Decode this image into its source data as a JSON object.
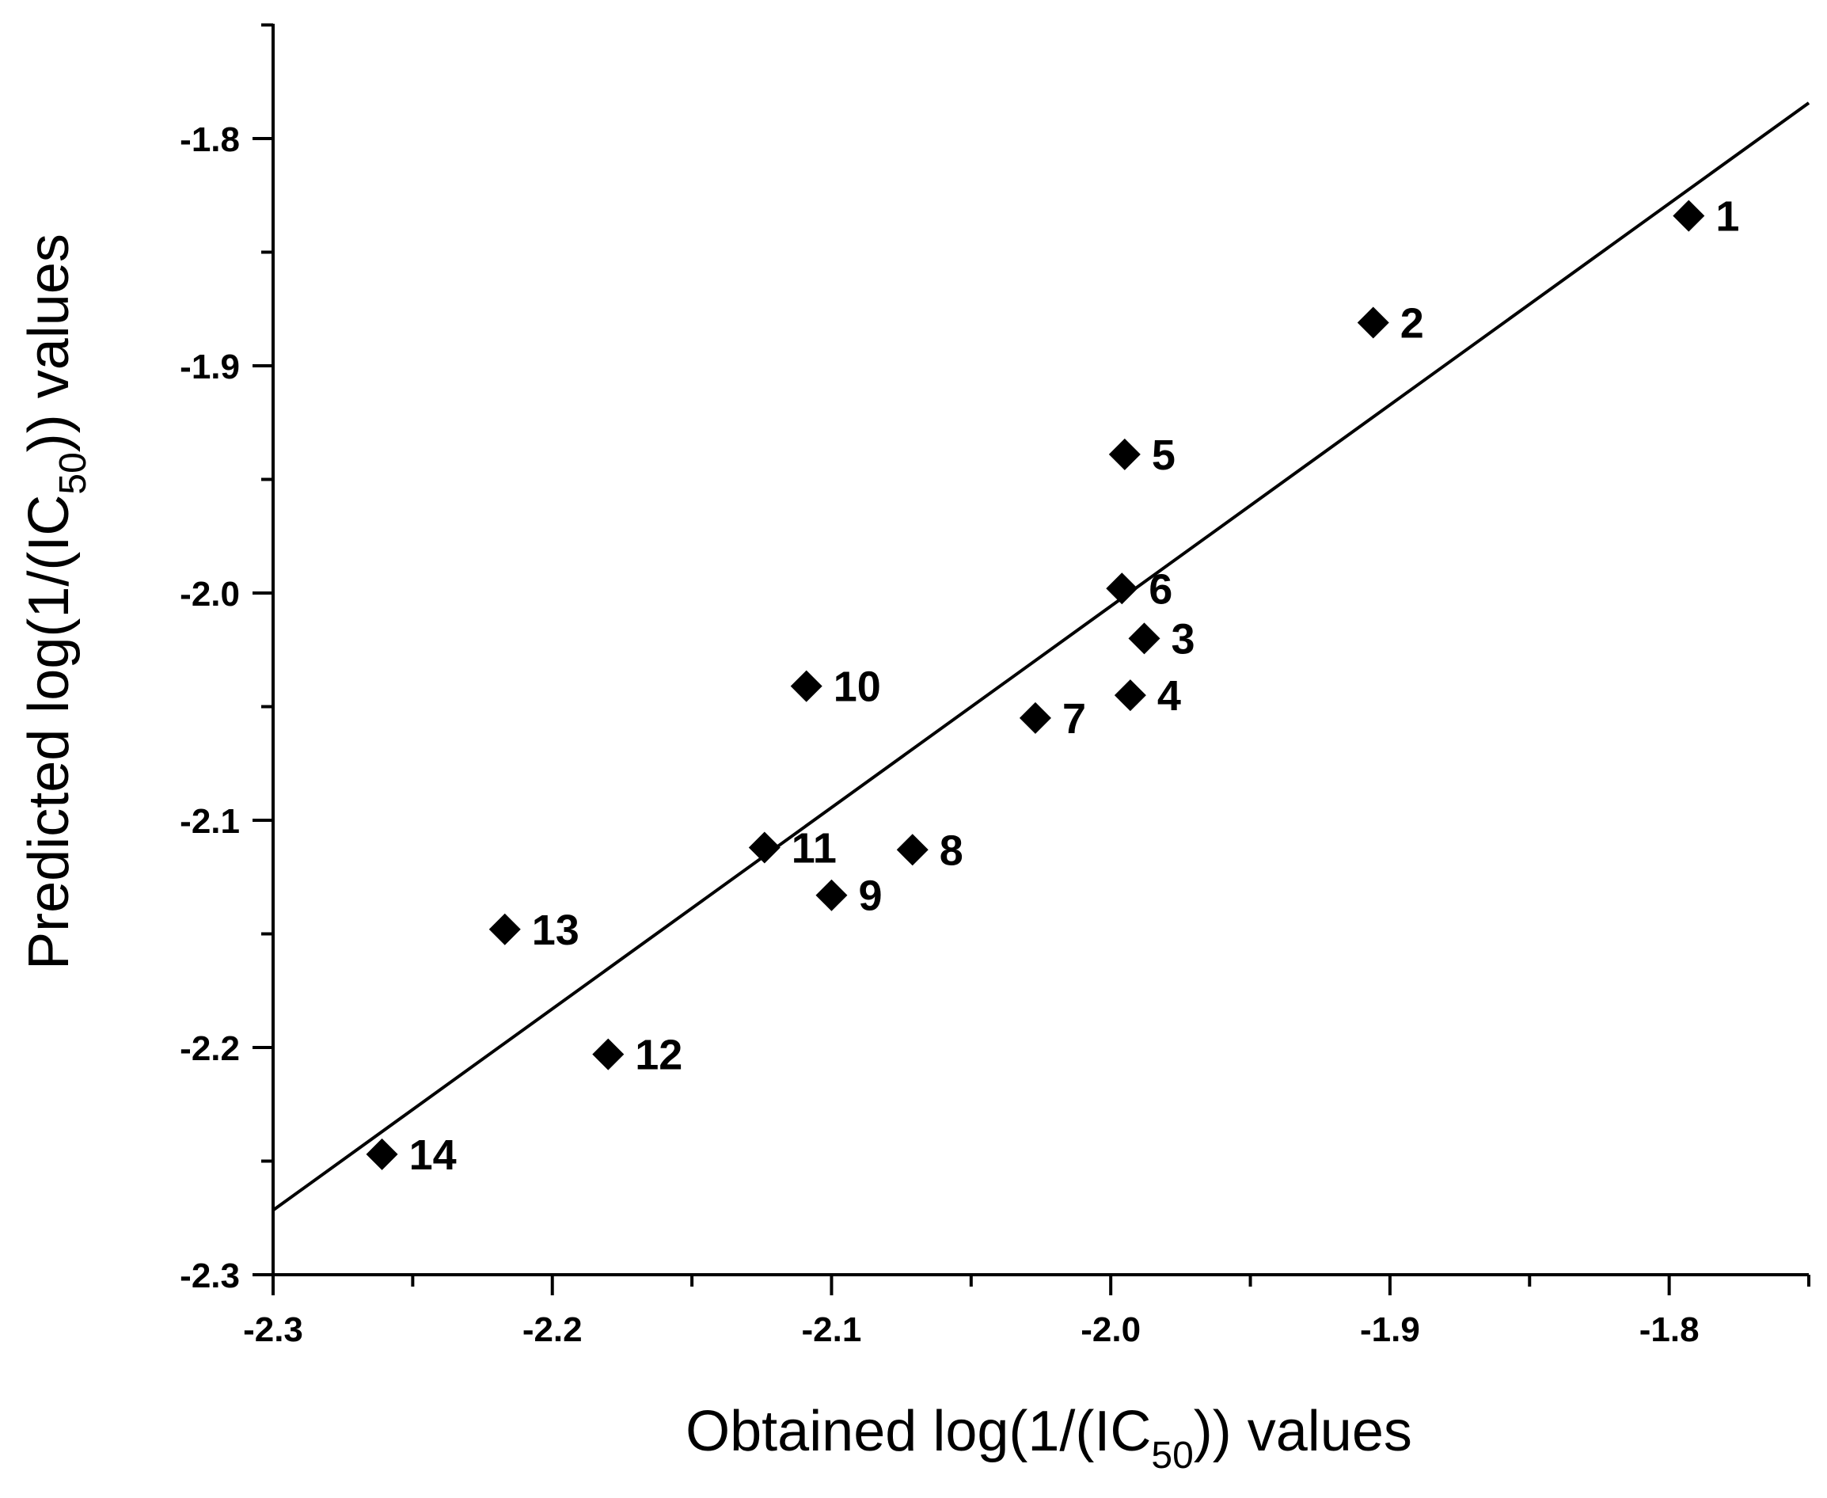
{
  "chart_data": {
    "type": "scatter",
    "xlabel": {
      "prefix": "Obtained log(1/(IC",
      "sub": "50",
      "suffix": ")) values"
    },
    "ylabel": {
      "prefix": "Predicted log(1/(IC",
      "sub": "50",
      "suffix": ")) values"
    },
    "xlim": [
      -2.3,
      -1.75
    ],
    "ylim": [
      -2.3,
      -1.75
    ],
    "x_ticks": [
      -2.3,
      -2.2,
      -2.1,
      -2.0,
      -1.9,
      -1.8
    ],
    "x_tick_labels": [
      "-2.3",
      "-2.2",
      "-2.1",
      "-2.0",
      "-1.9",
      "-1.8"
    ],
    "x_minor_ticks": [
      -2.25,
      -2.15,
      -2.05,
      -1.95,
      -1.85,
      -1.75
    ],
    "y_ticks": [
      -2.3,
      -2.2,
      -2.1,
      -2.0,
      -1.9,
      -1.8
    ],
    "y_tick_labels": [
      "-2.3",
      "-2.2",
      "-2.1",
      "-2.0",
      "-1.9",
      "-1.8"
    ],
    "y_minor_ticks": [
      -2.25,
      -2.15,
      -2.05,
      -1.95,
      -1.85,
      -1.75
    ],
    "grid": false,
    "marker": "diamond",
    "marker_color": "#000000",
    "points": [
      {
        "label": "1",
        "x": -1.793,
        "y": -1.834
      },
      {
        "label": "2",
        "x": -1.906,
        "y": -1.881
      },
      {
        "label": "3",
        "x": -1.988,
        "y": -2.02
      },
      {
        "label": "4",
        "x": -1.993,
        "y": -2.045
      },
      {
        "label": "5",
        "x": -1.995,
        "y": -1.939
      },
      {
        "label": "6",
        "x": -1.996,
        "y": -1.998
      },
      {
        "label": "7",
        "x": -2.027,
        "y": -2.055
      },
      {
        "label": "8",
        "x": -2.071,
        "y": -2.113
      },
      {
        "label": "9",
        "x": -2.1,
        "y": -2.133
      },
      {
        "label": "10",
        "x": -2.109,
        "y": -2.041
      },
      {
        "label": "11",
        "x": -2.124,
        "y": -2.112
      },
      {
        "label": "12",
        "x": -2.18,
        "y": -2.203
      },
      {
        "label": "13",
        "x": -2.217,
        "y": -2.148
      },
      {
        "label": "14",
        "x": -2.261,
        "y": -2.247
      }
    ],
    "fit_line": {
      "x": [
        -2.3,
        -1.75
      ],
      "y": [
        -2.2716,
        -1.7843
      ],
      "color": "#000000"
    }
  }
}
